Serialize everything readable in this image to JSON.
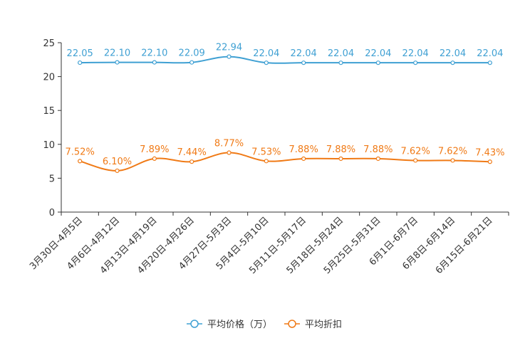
{
  "chart_data": {
    "type": "line",
    "title": "",
    "xlabel": "",
    "ylabel": "",
    "ylim": [
      0,
      25
    ],
    "yticks": [
      0,
      5,
      10,
      15,
      20,
      25
    ],
    "grid": false,
    "legend_position": "bottom",
    "categories": [
      "3月30日-4月5日",
      "4月6日-4月12日",
      "4月13日-4月19日",
      "4月20日-4月26日",
      "4月27日-5月3日",
      "5月4日-5月10日",
      "5月11日-5月17日",
      "5月18日-5月24日",
      "5月25日-5月31日",
      "6月1日-6月7日",
      "6月8日-6月14日",
      "6月15日-6月21日"
    ],
    "series": [
      {
        "name": "平均价格（万）",
        "color": "#3fa0d3",
        "values": [
          22.05,
          22.1,
          22.1,
          22.09,
          22.94,
          22.04,
          22.04,
          22.04,
          22.04,
          22.04,
          22.04,
          22.04
        ],
        "labels": [
          "22.05",
          "22.10",
          "22.10",
          "22.09",
          "22.94",
          "22.04",
          "22.04",
          "22.04",
          "22.04",
          "22.04",
          "22.04",
          "22.04"
        ]
      },
      {
        "name": "平均折扣",
        "color": "#f07a16",
        "values": [
          7.52,
          6.1,
          7.89,
          7.44,
          8.77,
          7.53,
          7.88,
          7.88,
          7.88,
          7.62,
          7.62,
          7.43
        ],
        "labels": [
          "7.52%",
          "6.10%",
          "7.89%",
          "7.44%",
          "8.77%",
          "7.53%",
          "7.88%",
          "7.88%",
          "7.88%",
          "7.62%",
          "7.62%",
          "7.43%"
        ]
      }
    ]
  }
}
